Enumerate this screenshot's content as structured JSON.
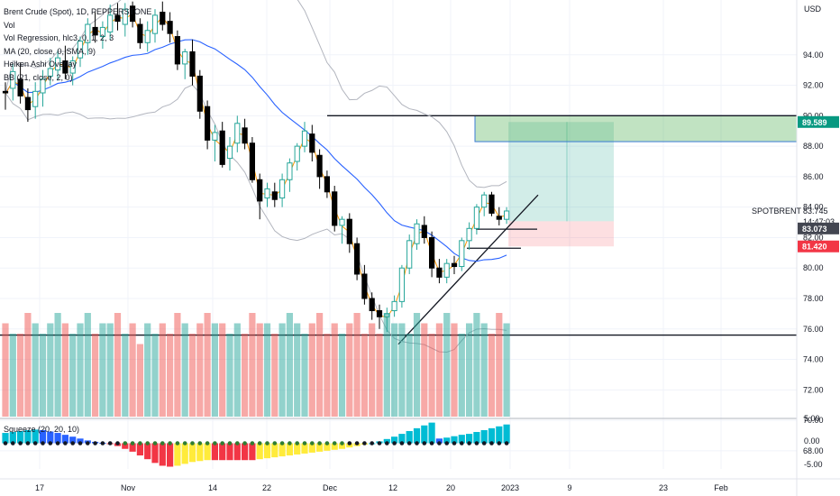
{
  "legend": {
    "title": "Brent Crude (Spot), 1D, PEPPERSTONE",
    "rows": [
      "Vol",
      "Vol Regression, hlc3, 0, 1, 2, 3",
      "MA (20, close, 0, SMA, 9)",
      "Heiken Ashi Overlay",
      "BB (21, close, 2, 0)"
    ],
    "squeeze_label": "Squeeze (20, 20, 10)"
  },
  "currency": "USD",
  "symbol_label": "SPOTBRENT",
  "countdown": "14:47:03",
  "price_tags": [
    {
      "value": "89.589",
      "color": "#089981",
      "kind": "target"
    },
    {
      "value": "83.745",
      "color": "#ffffff",
      "kind": "last"
    },
    {
      "value": "83.073",
      "color": "#434651",
      "kind": "entry"
    },
    {
      "value": "81.420",
      "color": "#f23645",
      "kind": "stop"
    }
  ],
  "chart_data": {
    "type": "candlestick",
    "y_axis": {
      "ticks": [
        "94.00",
        "92.00",
        "90.00",
        "88.00",
        "86.00",
        "84.00",
        "82.00",
        "80.00",
        "78.00",
        "76.00",
        "74.00",
        "72.00",
        "70.00",
        "68.00"
      ],
      "range": [
        67.4,
        97.6
      ]
    },
    "x_axis": {
      "ticks": [
        "17",
        "Nov",
        "14",
        "22",
        "Dec",
        "12",
        "20",
        "2023",
        "9",
        "23",
        "Feb"
      ]
    },
    "candles": [
      {
        "o": 91.6,
        "h": 92.2,
        "l": 90.4,
        "c": 91.5
      },
      {
        "o": 91.8,
        "h": 93.4,
        "l": 91.0,
        "c": 92.9
      },
      {
        "o": 92.4,
        "h": 93.5,
        "l": 90.8,
        "c": 91.3
      },
      {
        "o": 91.2,
        "h": 91.8,
        "l": 89.6,
        "c": 90.4
      },
      {
        "o": 90.6,
        "h": 92.2,
        "l": 89.8,
        "c": 91.6
      },
      {
        "o": 91.5,
        "h": 93.0,
        "l": 90.6,
        "c": 92.4
      },
      {
        "o": 92.6,
        "h": 93.8,
        "l": 92.0,
        "c": 93.1
      },
      {
        "o": 93.0,
        "h": 94.3,
        "l": 92.3,
        "c": 93.8
      },
      {
        "o": 93.6,
        "h": 94.6,
        "l": 92.4,
        "c": 92.8
      },
      {
        "o": 92.8,
        "h": 93.9,
        "l": 92.0,
        "c": 93.6
      },
      {
        "o": 93.8,
        "h": 95.2,
        "l": 93.2,
        "c": 94.9
      },
      {
        "o": 94.8,
        "h": 96.4,
        "l": 94.0,
        "c": 96.0
      },
      {
        "o": 95.8,
        "h": 96.8,
        "l": 94.8,
        "c": 95.3
      },
      {
        "o": 95.2,
        "h": 96.2,
        "l": 94.4,
        "c": 95.8
      },
      {
        "o": 95.5,
        "h": 97.3,
        "l": 95.0,
        "c": 96.6
      },
      {
        "o": 96.6,
        "h": 97.4,
        "l": 95.6,
        "c": 96.2
      },
      {
        "o": 96.0,
        "h": 97.4,
        "l": 95.2,
        "c": 97.0
      },
      {
        "o": 97.2,
        "h": 97.5,
        "l": 95.8,
        "c": 96.2
      },
      {
        "o": 96.0,
        "h": 96.4,
        "l": 94.4,
        "c": 94.8
      },
      {
        "o": 94.8,
        "h": 96.2,
        "l": 94.2,
        "c": 95.6
      },
      {
        "o": 95.4,
        "h": 97.0,
        "l": 94.8,
        "c": 96.6
      },
      {
        "o": 96.8,
        "h": 97.5,
        "l": 95.6,
        "c": 96.0
      },
      {
        "o": 96.2,
        "h": 96.8,
        "l": 94.8,
        "c": 95.4
      },
      {
        "o": 95.2,
        "h": 95.6,
        "l": 93.0,
        "c": 93.4
      },
      {
        "o": 93.4,
        "h": 94.4,
        "l": 92.4,
        "c": 94.2
      },
      {
        "o": 94.2,
        "h": 95.0,
        "l": 92.0,
        "c": 92.6
      },
      {
        "o": 92.6,
        "h": 93.0,
        "l": 89.8,
        "c": 90.3
      },
      {
        "o": 90.6,
        "h": 91.0,
        "l": 87.8,
        "c": 88.4
      },
      {
        "o": 88.4,
        "h": 89.4,
        "l": 87.0,
        "c": 88.9
      },
      {
        "o": 89.0,
        "h": 89.6,
        "l": 86.6,
        "c": 86.8
      },
      {
        "o": 87.2,
        "h": 88.6,
        "l": 86.4,
        "c": 88.0
      },
      {
        "o": 88.2,
        "h": 90.0,
        "l": 87.6,
        "c": 89.5
      },
      {
        "o": 89.2,
        "h": 89.8,
        "l": 87.8,
        "c": 88.2
      },
      {
        "o": 88.2,
        "h": 88.6,
        "l": 85.6,
        "c": 85.8
      },
      {
        "o": 85.8,
        "h": 86.2,
        "l": 83.2,
        "c": 84.4
      },
      {
        "o": 84.6,
        "h": 85.6,
        "l": 84.0,
        "c": 85.2
      },
      {
        "o": 85.0,
        "h": 85.6,
        "l": 84.0,
        "c": 84.5
      },
      {
        "o": 84.6,
        "h": 86.2,
        "l": 84.0,
        "c": 85.8
      },
      {
        "o": 85.8,
        "h": 87.2,
        "l": 85.0,
        "c": 86.9
      },
      {
        "o": 87.0,
        "h": 88.2,
        "l": 86.4,
        "c": 88.0
      },
      {
        "o": 88.0,
        "h": 89.6,
        "l": 87.6,
        "c": 89.0
      },
      {
        "o": 88.8,
        "h": 89.4,
        "l": 87.0,
        "c": 87.6
      },
      {
        "o": 87.4,
        "h": 87.8,
        "l": 85.2,
        "c": 86.0
      },
      {
        "o": 86.0,
        "h": 86.4,
        "l": 84.6,
        "c": 85.0
      },
      {
        "o": 85.0,
        "h": 85.4,
        "l": 82.4,
        "c": 82.8
      },
      {
        "o": 82.8,
        "h": 83.4,
        "l": 81.6,
        "c": 83.2
      },
      {
        "o": 83.2,
        "h": 83.6,
        "l": 81.0,
        "c": 81.6
      },
      {
        "o": 81.6,
        "h": 82.0,
        "l": 79.2,
        "c": 79.6
      },
      {
        "o": 79.6,
        "h": 80.2,
        "l": 77.6,
        "c": 78.0
      },
      {
        "o": 78.0,
        "h": 78.4,
        "l": 76.6,
        "c": 77.2
      },
      {
        "o": 77.2,
        "h": 77.6,
        "l": 76.0,
        "c": 76.8
      },
      {
        "o": 76.8,
        "h": 77.4,
        "l": 75.8,
        "c": 77.0
      },
      {
        "o": 77.2,
        "h": 78.2,
        "l": 76.8,
        "c": 77.8
      },
      {
        "o": 77.8,
        "h": 80.2,
        "l": 77.4,
        "c": 80.0
      },
      {
        "o": 80.0,
        "h": 82.2,
        "l": 79.6,
        "c": 81.8
      },
      {
        "o": 81.6,
        "h": 83.2,
        "l": 81.2,
        "c": 82.9
      },
      {
        "o": 82.8,
        "h": 83.4,
        "l": 81.6,
        "c": 82.0
      },
      {
        "o": 82.0,
        "h": 82.4,
        "l": 79.4,
        "c": 80.0
      },
      {
        "o": 80.0,
        "h": 80.6,
        "l": 79.0,
        "c": 79.4
      },
      {
        "o": 79.4,
        "h": 80.6,
        "l": 79.0,
        "c": 80.3
      },
      {
        "o": 80.3,
        "h": 80.8,
        "l": 79.6,
        "c": 80.1
      },
      {
        "o": 80.1,
        "h": 82.0,
        "l": 79.8,
        "c": 81.8
      },
      {
        "o": 81.8,
        "h": 83.0,
        "l": 81.2,
        "c": 82.6
      },
      {
        "o": 82.6,
        "h": 84.2,
        "l": 82.2,
        "c": 84.0
      },
      {
        "o": 84.0,
        "h": 85.0,
        "l": 83.4,
        "c": 84.8
      },
      {
        "o": 84.8,
        "h": 85.0,
        "l": 83.4,
        "c": 83.6
      },
      {
        "o": 83.4,
        "h": 84.0,
        "l": 82.8,
        "c": 83.2
      },
      {
        "o": 83.2,
        "h": 84.0,
        "l": 82.9,
        "c": 83.745
      }
    ],
    "series": [
      {
        "name": "MA (20, close, 0, SMA, 9)",
        "color": "#2962ff"
      },
      {
        "name": "BB (21, close, 2, 0)",
        "color": "#b2b5be"
      },
      {
        "name": "Heiken Ashi Overlay",
        "color": "#ff9800"
      }
    ],
    "horizontal_levels": [
      90.0,
      75.6
    ],
    "position": {
      "entry": 83.073,
      "target": 89.589,
      "stop": 81.42
    },
    "volume": [
      9,
      8,
      8,
      10,
      9,
      8,
      9,
      10,
      9,
      8,
      9,
      10,
      8,
      9,
      9,
      10,
      8,
      9,
      7,
      9,
      8,
      9,
      8,
      10,
      9,
      8,
      9,
      10,
      9,
      9,
      8,
      9,
      8,
      10,
      9,
      9,
      8,
      9,
      10,
      9,
      8,
      9,
      10,
      8,
      9,
      8,
      9,
      10,
      8,
      9,
      8,
      10,
      9,
      9,
      8,
      10,
      9,
      8,
      9,
      10,
      9,
      8,
      9,
      10,
      9,
      8,
      10,
      9
    ],
    "squeeze": [
      2.2,
      2.4,
      2.6,
      2.8,
      2.9,
      2.8,
      2.5,
      2.2,
      1.8,
      1.4,
      1.0,
      0.6,
      0.3,
      0.1,
      -0.2,
      -0.6,
      -1.2,
      -1.8,
      -2.6,
      -3.4,
      -4.2,
      -4.8,
      -5.0,
      -4.8,
      -4.4,
      -4.0,
      -3.8,
      -3.6,
      -3.6,
      -3.6,
      -3.6,
      -3.6,
      -3.6,
      -3.6,
      -3.4,
      -3.2,
      -3.0,
      -2.8,
      -2.6,
      -2.4,
      -2.2,
      -2.0,
      -1.8,
      -1.6,
      -1.4,
      -1.2,
      -0.9,
      -0.6,
      -0.3,
      0.0,
      0.4,
      0.9,
      1.4,
      2.0,
      2.6,
      3.2,
      3.8,
      4.4,
      1.0,
      1.2,
      1.5,
      1.8,
      2.0,
      2.4,
      2.8,
      3.2,
      3.6,
      4.0
    ]
  }
}
